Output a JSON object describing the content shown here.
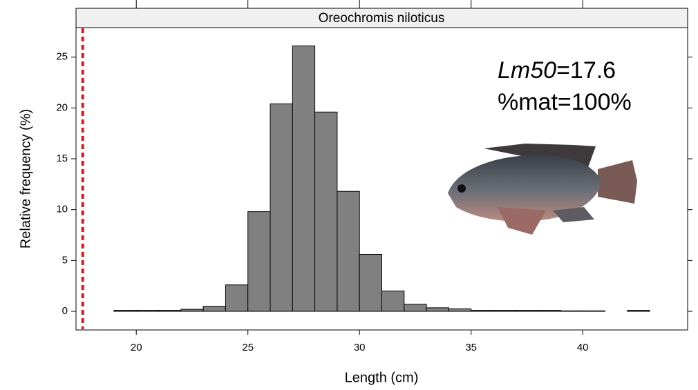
{
  "chart_data": {
    "type": "histogram",
    "strip_title": "Oreochromis niloticus",
    "xlabel": "Length (cm)",
    "ylabel": "Relative frequency (%)",
    "bins": [
      19,
      20,
      21,
      22,
      23,
      24,
      25,
      26,
      27,
      28,
      29,
      30,
      31,
      32,
      33,
      34,
      35,
      36,
      37,
      38,
      39,
      40,
      41,
      42,
      43
    ],
    "values": [
      0.1,
      0.1,
      0.1,
      0.2,
      0.5,
      2.6,
      9.8,
      20.4,
      26.1,
      19.6,
      11.8,
      5.6,
      2.0,
      0.7,
      0.35,
      0.25,
      0.1,
      0.1,
      0.1,
      0.1,
      0.05,
      0.05,
      0,
      0.1
    ],
    "color": "#808080",
    "xlim": [
      17.3,
      44.7
    ],
    "ylim": [
      -1.83,
      27.9
    ],
    "xticks": [
      20,
      25,
      30,
      35,
      40
    ],
    "yticks": [
      0,
      5,
      10,
      15,
      20,
      25
    ],
    "vline": {
      "value": 17.6,
      "color": "#e8141a"
    },
    "annotation": {
      "italic": "Lm50",
      "rest": "=17.6",
      "line2": "%mat=100%"
    }
  }
}
